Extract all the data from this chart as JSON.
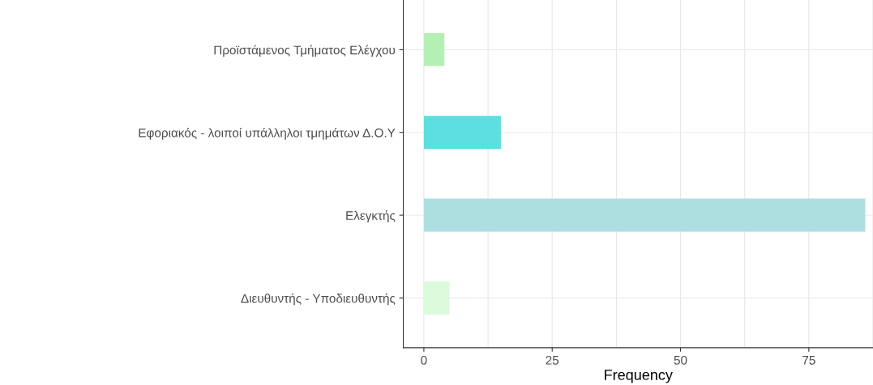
{
  "chart_data": {
    "type": "bar",
    "orientation": "horizontal",
    "xlabel": "Frequency",
    "categories": [
      "Προϊστάμενος Τμήματος Ελέγχου",
      "Εφοριακός - λοιποί υπάλληλοι τμημάτων Δ.Ο.Υ",
      "Ελεγκτής",
      "Διευθυντής - Υποδιευθυντής"
    ],
    "values": [
      4,
      15,
      86,
      5
    ],
    "colors": [
      "#b4f0b4",
      "#5ddfe0",
      "#addfe0",
      "#dcfadc"
    ],
    "xlim": [
      -4,
      87.5
    ],
    "xticks": [
      0,
      25,
      50,
      75
    ],
    "grid": true
  }
}
